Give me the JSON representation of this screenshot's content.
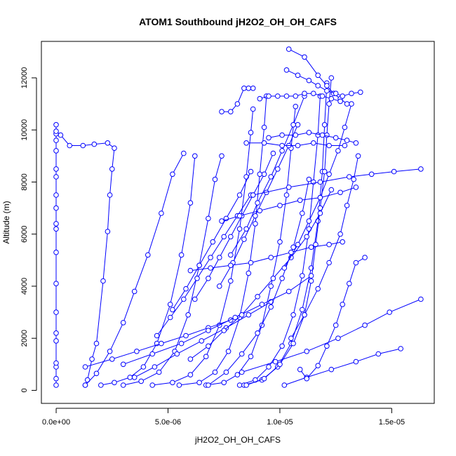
{
  "chart_data": {
    "type": "line",
    "title": "ATOM1 Southbound jH2O2_OH_OH_CAFS",
    "xlabel": "jH2O2_OH_OH_CAFS",
    "ylabel": "Altitude (m)",
    "xlim": [
      -6.6e-07,
      1.69e-05
    ],
    "ylim": [
      -500,
      13400
    ],
    "x_ticks": [
      {
        "value": 0,
        "label": "0.0e+00"
      },
      {
        "value": 5e-06,
        "label": "5.0e-06"
      },
      {
        "value": 1e-05,
        "label": "1.0e-05"
      },
      {
        "value": 1.5e-05,
        "label": "1.5e-05"
      }
    ],
    "y_ticks": [
      {
        "value": 0,
        "label": "0"
      },
      {
        "value": 2000,
        "label": "2000"
      },
      {
        "value": 4000,
        "label": "4000"
      },
      {
        "value": 6000,
        "label": "6000"
      },
      {
        "value": 8000,
        "label": "8000"
      },
      {
        "value": 10000,
        "label": "10000"
      },
      {
        "value": 12000,
        "label": "12000"
      }
    ],
    "color": "#0000ff",
    "marker": "open-circle",
    "grid": false,
    "series": [
      {
        "x": [
          0,
          0,
          0,
          0,
          0,
          0,
          0,
          0,
          0,
          0,
          0,
          0,
          0,
          0,
          0,
          0,
          0,
          0,
          0,
          0
        ],
        "y": [
          200,
          450,
          900,
          1050,
          1900,
          2200,
          3000,
          4100,
          5300,
          6200,
          6400,
          7000,
          7500,
          8200,
          8500,
          9200,
          9600,
          9850,
          9950,
          10200
        ]
      },
      {
        "x": [
          2e-07,
          6e-07,
          1.2e-06,
          1.7e-06,
          2.3e-06,
          2.6e-06,
          2.5e-06,
          2.4e-06,
          2.3e-06,
          2.1e-06,
          1.8e-06,
          1.6e-06,
          1.4e-06,
          1.3e-06
        ],
        "y": [
          9800,
          9400,
          9400,
          9450,
          9500,
          9300,
          8500,
          7500,
          6100,
          4200,
          1800,
          1200,
          400,
          200
        ]
      },
      {
        "x": [
          1.3e-06,
          1.8e-06,
          2.4e-06,
          3e-06,
          3.5e-06,
          4.1e-06,
          4.7e-06,
          5.2e-06,
          5.7e-06
        ],
        "y": [
          200,
          650,
          1500,
          2600,
          3800,
          5200,
          6800,
          8300,
          9100
        ]
      },
      {
        "x": [
          2e-06,
          2.6e-06,
          3.3e-06,
          3.9e-06,
          4.5e-06,
          5.1e-06,
          5.6e-06,
          6e-06,
          6.2e-06
        ],
        "y": [
          200,
          300,
          500,
          900,
          1800,
          3300,
          5200,
          7200,
          9000
        ]
      },
      {
        "x": [
          3e-06,
          3.8e-06,
          4.6e-06,
          5.3e-06,
          5.9e-06,
          6.4e-06,
          6.8e-06,
          7.1e-06,
          7.4e-06
        ],
        "y": [
          200,
          350,
          700,
          1500,
          2900,
          4800,
          6600,
          8100,
          9000
        ]
      },
      {
        "x": [
          4.3e-06,
          5.2e-06,
          6e-06,
          6.7e-06,
          7.3e-06,
          7.8e-06,
          8.2e-06,
          8.5e-06,
          8.7e-06,
          8.8e-06
        ],
        "y": [
          200,
          300,
          600,
          1300,
          2500,
          4200,
          6200,
          8200,
          9900,
          10800
        ]
      },
      {
        "x": [
          5.5e-06,
          6.4e-06,
          7.1e-06,
          7.7e-06,
          8.2e-06,
          8.6e-06,
          8.9e-06,
          9.1e-06,
          9.3e-06,
          9.4e-06
        ],
        "y": [
          200,
          300,
          700,
          1500,
          2800,
          4500,
          6400,
          8300,
          10100,
          11300
        ]
      },
      {
        "x": [
          6.7e-06,
          7.5e-06,
          8.1e-06,
          8.7e-06,
          9.2e-06,
          9.6e-06,
          1e-05,
          1.03e-05,
          1.05e-05,
          1.07e-05
        ],
        "y": [
          200,
          300,
          600,
          1300,
          2500,
          4000,
          5700,
          7500,
          9300,
          10900
        ]
      },
      {
        "x": [
          8.2e-06,
          8.9e-06,
          9.5e-06,
          1.01e-05,
          1.06e-05,
          1.1e-05,
          1.13e-05,
          1.15e-05,
          1.17e-05,
          1.18e-05
        ],
        "y": [
          200,
          400,
          900,
          1700,
          2900,
          4400,
          6200,
          8000,
          9800,
          11300
        ]
      },
      {
        "x": [
          8.4e-06,
          9.2e-06,
          9.9e-06,
          1.05e-05,
          1.1e-05,
          1.14e-05,
          1.17e-05,
          1.19e-05,
          1.2e-05,
          1.21e-05
        ],
        "y": [
          200,
          400,
          900,
          1800,
          3100,
          4700,
          6500,
          8400,
          10200,
          11800
        ]
      },
      {
        "x": [
          8.5e-06,
          9.3e-06,
          1e-05,
          1.06e-05,
          1.11e-05,
          1.14e-05,
          1.16e-05,
          1.18e-05,
          1.2e-05,
          1.21e-05,
          1.22e-05,
          1.23e-05
        ],
        "y": [
          200,
          450,
          1000,
          1800,
          2900,
          4200,
          5600,
          7000,
          8400,
          9800,
          11000,
          12000
        ]
      },
      {
        "x": [
          3.5e-06,
          4.4e-06,
          5.4e-06,
          6.5e-06,
          7.6e-06,
          8.6e-06,
          9.6e-06
        ],
        "y": [
          500,
          900,
          1400,
          1900,
          2400,
          2900,
          3400
        ]
      },
      {
        "x": [
          1.3e-06,
          2.5e-06,
          3.6e-06,
          4.7e-06,
          5.8e-06,
          6.8e-06,
          7.8e-06
        ],
        "y": [
          900,
          1200,
          1500,
          1800,
          2100,
          2400,
          2700
        ]
      },
      {
        "x": [
          3e-06,
          4.3e-06,
          5.6e-06,
          6.8e-06,
          8e-06,
          9.2e-06,
          1.04e-05,
          1.14e-05
        ],
        "y": [
          1000,
          1400,
          1800,
          2300,
          2800,
          3300,
          3800,
          4400
        ]
      },
      {
        "x": [
          6e-06,
          6.8e-06,
          7.5e-06,
          8.3e-06,
          9e-06,
          9.7e-06,
          1.05e-05,
          1.12e-05,
          1.18e-05,
          1.23e-05
        ],
        "y": [
          1200,
          1700,
          2300,
          2900,
          3600,
          4300,
          5100,
          5900,
          6800,
          7700
        ]
      },
      {
        "x": [
          6.8e-06,
          7.6e-06,
          8.3e-06,
          9e-06,
          9.6e-06,
          1.01e-05,
          1.06e-05,
          1.1e-05,
          1.13e-05
        ],
        "y": [
          200,
          700,
          1400,
          2200,
          3200,
          4300,
          5500,
          6800,
          8100
        ]
      },
      {
        "x": [
          4.5e-06,
          5.1e-06,
          5.7e-06,
          6.3e-06,
          6.9e-06,
          7.5e-06,
          8.1e-06,
          8.7e-06
        ],
        "y": [
          2100,
          2800,
          3500,
          4300,
          5100,
          5900,
          6700,
          7500
        ]
      },
      {
        "x": [
          5.2e-06,
          5.8e-06,
          6.4e-06,
          7e-06,
          7.6e-06,
          8.2e-06,
          8.7e-06
        ],
        "y": [
          3100,
          3900,
          4800,
          5700,
          6600,
          7500,
          8400
        ]
      },
      {
        "x": [
          6.2e-06,
          6.8e-06,
          7.3e-06,
          7.8e-06,
          8.3e-06,
          8.8e-06,
          9.3e-06,
          9.7e-06
        ],
        "y": [
          3500,
          4300,
          5100,
          5900,
          6700,
          7500,
          8300,
          9100
        ]
      },
      {
        "x": [
          7.3e-06,
          7.9e-06,
          8.4e-06,
          8.9e-06,
          9.4e-06,
          9.9e-06,
          1.04e-05,
          1.08e-05
        ],
        "y": [
          4000,
          4900,
          5800,
          6700,
          7600,
          8500,
          9400,
          10200
        ]
      },
      {
        "x": [
          7.8e-06,
          8.5e-06,
          9e-06,
          9.6e-06,
          1.01e-05,
          1.06e-05,
          1.11e-05
        ],
        "y": [
          5200,
          6200,
          7200,
          8200,
          9200,
          10200,
          11300
        ]
      },
      {
        "x": [
          1.02e-05,
          1.08e-05,
          1.13e-05,
          1.18e-05,
          1.22e-05,
          1.26e-05,
          1.29e-05,
          1.32e-05
        ],
        "y": [
          4700,
          5600,
          6500,
          7400,
          8300,
          9200,
          10100,
          11000
        ]
      },
      {
        "x": [
          1.05e-05,
          1.11e-05,
          1.17e-05,
          1.22e-05,
          1.27e-05,
          1.3e-05,
          1.33e-05,
          1.35e-05
        ],
        "y": [
          2000,
          2900,
          3900,
          4900,
          6000,
          7100,
          8100,
          9000
        ]
      },
      {
        "x": [
          8.8e-06,
          1.04e-05,
          1.18e-05,
          1.31e-05,
          1.41e-05,
          1.51e-05,
          1.63e-05
        ],
        "y": [
          7500,
          7800,
          8000,
          8200,
          8300,
          8400,
          8500
        ]
      },
      {
        "x": [
          8.3e-06,
          9.8e-06,
          1.12e-05,
          1.26e-05,
          1.38e-05,
          1.49e-05,
          1.63e-05
        ],
        "y": [
          700,
          1100,
          1500,
          2000,
          2500,
          3000,
          3500
        ]
      },
      {
        "x": [
          1.02e-05,
          1.12e-05,
          1.23e-05,
          1.34e-05,
          1.44e-05,
          1.54e-05
        ],
        "y": [
          200,
          500,
          800,
          1100,
          1400,
          1600
        ]
      },
      {
        "x": [
          1.09e-05,
          1.12e-05,
          1.17e-05,
          1.21e-05,
          1.25e-05,
          1.28e-05,
          1.31e-05,
          1.34e-05,
          1.38e-05
        ],
        "y": [
          800,
          450,
          950,
          1700,
          2500,
          3300,
          4100,
          4900,
          5100
        ]
      },
      {
        "x": [
          1.04e-05,
          1.11e-05,
          1.17e-05,
          1.21e-05,
          1.24e-05,
          1.27e-05,
          1.3e-05
        ],
        "y": [
          13100,
          12800,
          12100,
          11700,
          11400,
          11200,
          11000
        ]
      },
      {
        "x": [
          1.03e-05,
          1.08e-05,
          1.13e-05,
          1.17e-05,
          1.21e-05,
          1.25e-05,
          1.28e-05,
          1.32e-05,
          1.36e-05
        ],
        "y": [
          12300,
          12100,
          11900,
          11700,
          11500,
          11400,
          11300,
          11400,
          11450
        ]
      },
      {
        "x": [
          9.1e-06,
          9.5e-06,
          9.9e-06,
          1.03e-05,
          1.07e-05,
          1.11e-05,
          1.15e-05,
          1.19e-05,
          1.23e-05,
          1.27e-05
        ],
        "y": [
          11200,
          11300,
          11300,
          11300,
          11300,
          11400,
          11400,
          11300,
          11200,
          11100
        ]
      },
      {
        "x": [
          7.4e-06,
          7.8e-06,
          8.1e-06,
          8.4e-06,
          8.6e-06,
          8.8e-06
        ],
        "y": [
          10700,
          10700,
          11000,
          11600,
          11600,
          11600
        ]
      },
      {
        "x": [
          6e-06,
          6.9e-06,
          7.8e-06,
          8.7e-06,
          9.6e-06,
          1.05e-05,
          1.14e-05,
          1.22e-05,
          1.28e-05
        ],
        "y": [
          4600,
          4700,
          4800,
          4900,
          5100,
          5300,
          5500,
          5600,
          5700
        ]
      },
      {
        "x": [
          7.4e-06,
          8.2e-06,
          9.1e-06,
          1e-05,
          1.09e-05,
          1.18e-05,
          1.27e-05,
          1.34e-05
        ],
        "y": [
          6500,
          6700,
          6900,
          7100,
          7300,
          7400,
          7600,
          7800
        ]
      },
      {
        "x": [
          8.5e-06,
          9.3e-06,
          1.01e-05,
          1.08e-05,
          1.15e-05,
          1.22e-05,
          1.29e-05
        ],
        "y": [
          9500,
          9500,
          9400,
          9400,
          9500,
          9400,
          9400
        ]
      },
      {
        "x": [
          9.5e-06,
          1.01e-05,
          1.07e-05,
          1.13e-05,
          1.19e-05,
          1.25e-05,
          1.3e-05,
          1.34e-05
        ],
        "y": [
          9700,
          9800,
          9800,
          9900,
          9800,
          9700,
          9600,
          9500
        ]
      }
    ]
  }
}
